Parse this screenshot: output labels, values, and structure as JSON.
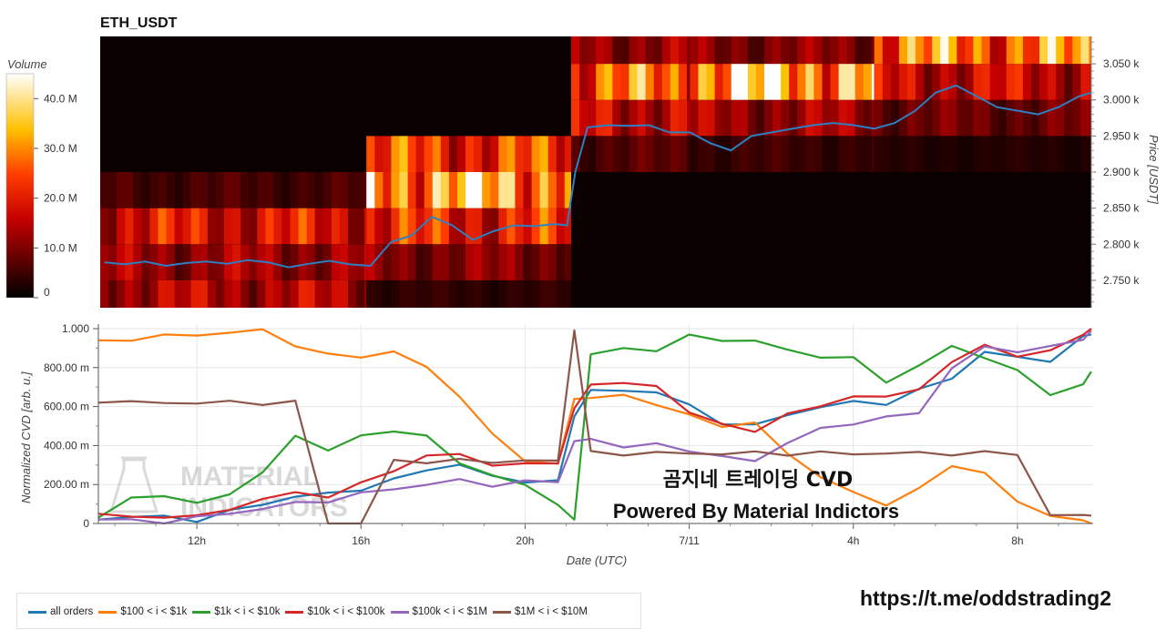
{
  "top_panel": {
    "title": "ETH_USDT",
    "colorbar_title": "Volume",
    "colorbar_ticks": [
      "40.0 M",
      "30.0 M",
      "20.0 M",
      "10.0 M",
      "0"
    ],
    "y_axis_title": "Price [USDT]",
    "price_ticks": [
      "3.050 k",
      "3.000 k",
      "2.950 k",
      "2.900 k",
      "2.850 k",
      "2.800 k",
      "2.750 k"
    ]
  },
  "bottom_panel": {
    "y_axis_title": "Normalized CVD [arb. u.]",
    "y_ticks": [
      "1.000",
      "800.00 m",
      "600.00 m",
      "400.00 m",
      "200.00 m",
      "0"
    ],
    "x_axis_title": "Date (UTC)",
    "x_ticks": [
      "12h",
      "16h",
      "20h",
      "7/11",
      "4h",
      "8h"
    ],
    "watermark_line1": "MATERIAL",
    "watermark_line2": "INDICATORS",
    "annotation_line1": "곰지네 트레이딩 CVD",
    "annotation_line2": "Powered By Material Indictors"
  },
  "legend": [
    {
      "label": "all orders",
      "color": "#1f77b4"
    },
    {
      "label": "$100 < i < $1k",
      "color": "#ff7f0e"
    },
    {
      "label": "$1k < i < $10k",
      "color": "#2ca02c"
    },
    {
      "label": "$10k < i < $100k",
      "color": "#d62728"
    },
    {
      "label": "$100k < i < $1M",
      "color": "#9467bd"
    },
    {
      "label": "$1M < i < $10M",
      "color": "#8c564b"
    }
  ],
  "url_text": "https://t.me/oddstrading2",
  "chart_data": [
    {
      "type": "heatmap",
      "title": "ETH_USDT",
      "x_hours_utc": [
        9.7,
        10.2,
        10.7,
        11.2,
        11.7,
        12.2,
        12.7,
        13.2,
        13.7,
        14.2,
        14.7,
        15.2,
        15.7,
        16.2,
        16.7,
        17.2,
        17.7,
        18.2,
        18.7,
        19.2,
        19.7,
        20.2,
        20.7,
        21.2,
        21.7,
        22.2,
        22.7,
        23.2,
        23.7,
        24.2,
        24.7,
        25.2,
        25.7,
        26.2,
        26.7,
        27.2,
        27.7,
        28.2,
        28.7,
        29.2,
        29.7,
        30.2,
        30.7,
        31.2,
        31.7,
        32.2,
        32.7,
        33.2,
        33.7
      ],
      "price_bins": [
        2725,
        2775,
        2825,
        2875,
        2925,
        2975,
        3025,
        3075
      ],
      "volume_segments_M": [
        {
          "hours": [
            9.6,
            16.1
          ],
          "prices": {
            "2725": 14,
            "2775": 12,
            "2825": 18,
            "2875": 5
          }
        },
        {
          "hours": [
            16.1,
            21.1
          ],
          "prices": {
            "2725": 3,
            "2775": 10,
            "2825": 20,
            "2875": 33,
            "2925": 22
          }
        },
        {
          "hours": [
            21.1,
            24.0
          ],
          "prices": {
            "2925": 6,
            "2975": 16,
            "3025": 26,
            "3075": 12
          }
        },
        {
          "hours": [
            24.0,
            28.5
          ],
          "prices": {
            "2925": 4,
            "2975": 12,
            "3025": 34,
            "3075": 10
          }
        },
        {
          "hours": [
            28.5,
            33.8
          ],
          "prices": {
            "2925": 2,
            "2975": 8,
            "3025": 16,
            "3075": 28
          }
        }
      ],
      "price_line": {
        "x": [
          9.7,
          10.2,
          10.7,
          11.2,
          11.7,
          12.2,
          12.7,
          13.2,
          13.7,
          14.2,
          14.7,
          15.2,
          15.7,
          16.2,
          16.7,
          17.2,
          17.7,
          18.2,
          18.7,
          19.2,
          19.7,
          20.2,
          20.7,
          21.0,
          21.2,
          21.5,
          22.0,
          22.5,
          23.0,
          23.5,
          24.0,
          24.5,
          25.0,
          25.5,
          26.0,
          26.5,
          27.0,
          27.5,
          28.0,
          28.5,
          29.0,
          29.5,
          30.0,
          30.5,
          31.0,
          31.5,
          32.0,
          32.5,
          33.0,
          33.5,
          33.8
        ],
        "y": [
          2775,
          2772,
          2776,
          2770,
          2774,
          2776,
          2773,
          2778,
          2775,
          2768,
          2773,
          2777,
          2772,
          2770,
          2803,
          2812,
          2838,
          2826,
          2806,
          2818,
          2826,
          2825,
          2828,
          2826,
          2900,
          2962,
          2965,
          2964,
          2965,
          2955,
          2955,
          2940,
          2930,
          2950,
          2955,
          2960,
          2965,
          2968,
          2965,
          2960,
          2968,
          2985,
          3010,
          3020,
          3005,
          2990,
          2985,
          2980,
          2990,
          3005,
          3010
        ]
      },
      "colorbar": {
        "title": "Volume",
        "range_M": [
          0,
          45
        ]
      },
      "ylabel": "Price [USDT]",
      "ylim": [
        2712,
        3088
      ]
    },
    {
      "type": "line",
      "xlabel": "Date (UTC)",
      "ylabel": "Normalized CVD [arb. u.]",
      "ylim": [
        0,
        1.0
      ],
      "xlim_hours": [
        9.6,
        33.8
      ],
      "x": [
        9.6,
        10.4,
        11.2,
        12.0,
        12.8,
        13.6,
        14.4,
        15.2,
        16.0,
        16.8,
        17.6,
        18.4,
        19.2,
        20.0,
        20.8,
        21.2,
        21.6,
        22.4,
        23.2,
        24.0,
        24.8,
        25.6,
        26.4,
        27.2,
        28.0,
        28.8,
        29.6,
        30.4,
        31.2,
        32.0,
        32.8,
        33.6,
        33.8
      ],
      "series": [
        {
          "name": "all orders",
          "values": [
            0.02,
            0.04,
            0.03,
            0.02,
            0.06,
            0.1,
            0.14,
            0.15,
            0.18,
            0.22,
            0.28,
            0.3,
            0.24,
            0.22,
            0.21,
            0.56,
            0.68,
            0.68,
            0.68,
            0.6,
            0.52,
            0.5,
            0.56,
            0.6,
            0.62,
            0.62,
            0.68,
            0.75,
            0.88,
            0.85,
            0.84,
            0.95,
            0.97
          ]
        },
        {
          "name": "$100 < i < $1k",
          "values": [
            0.94,
            0.95,
            0.96,
            0.97,
            0.98,
            0.99,
            0.92,
            0.86,
            0.86,
            0.88,
            0.8,
            0.66,
            0.45,
            0.33,
            0.3,
            0.64,
            0.65,
            0.65,
            0.62,
            0.55,
            0.5,
            0.52,
            0.35,
            0.25,
            0.15,
            0.1,
            0.18,
            0.29,
            0.27,
            0.1,
            0.05,
            0.01,
            0.0
          ]
        },
        {
          "name": "$1k < i < $10k",
          "values": [
            0.03,
            0.14,
            0.14,
            0.1,
            0.16,
            0.25,
            0.46,
            0.37,
            0.45,
            0.48,
            0.44,
            0.32,
            0.24,
            0.2,
            0.1,
            0.01,
            0.88,
            0.89,
            0.89,
            0.97,
            0.93,
            0.95,
            0.88,
            0.86,
            0.85,
            0.72,
            0.82,
            0.9,
            0.86,
            0.78,
            0.66,
            0.72,
            0.78
          ]
        },
        {
          "name": "$10k < i < $100k",
          "values": [
            0.05,
            0.03,
            0.04,
            0.03,
            0.08,
            0.12,
            0.16,
            0.14,
            0.2,
            0.28,
            0.34,
            0.36,
            0.3,
            0.3,
            0.32,
            0.58,
            0.72,
            0.72,
            0.7,
            0.58,
            0.5,
            0.48,
            0.56,
            0.6,
            0.66,
            0.64,
            0.7,
            0.82,
            0.92,
            0.86,
            0.88,
            0.98,
            1.0
          ]
        },
        {
          "name": "$100k < i < $1M",
          "values": [
            0.02,
            0.01,
            0.0,
            0.03,
            0.05,
            0.08,
            0.1,
            0.12,
            0.15,
            0.18,
            0.2,
            0.22,
            0.2,
            0.21,
            0.22,
            0.42,
            0.43,
            0.4,
            0.4,
            0.38,
            0.34,
            0.32,
            0.42,
            0.48,
            0.52,
            0.54,
            0.57,
            0.8,
            0.9,
            0.89,
            0.9,
            0.95,
            0.99
          ]
        },
        {
          "name": "$1M < i < $10M",
          "values": [
            0.62,
            0.62,
            0.62,
            0.62,
            0.62,
            0.62,
            0.62,
            0.0,
            0.0,
            0.32,
            0.32,
            0.32,
            0.32,
            0.32,
            0.32,
            1.0,
            0.36,
            0.36,
            0.36,
            0.36,
            0.36,
            0.36,
            0.36,
            0.36,
            0.36,
            0.36,
            0.36,
            0.36,
            0.36,
            0.36,
            0.04,
            0.04,
            0.04
          ]
        }
      ]
    }
  ]
}
